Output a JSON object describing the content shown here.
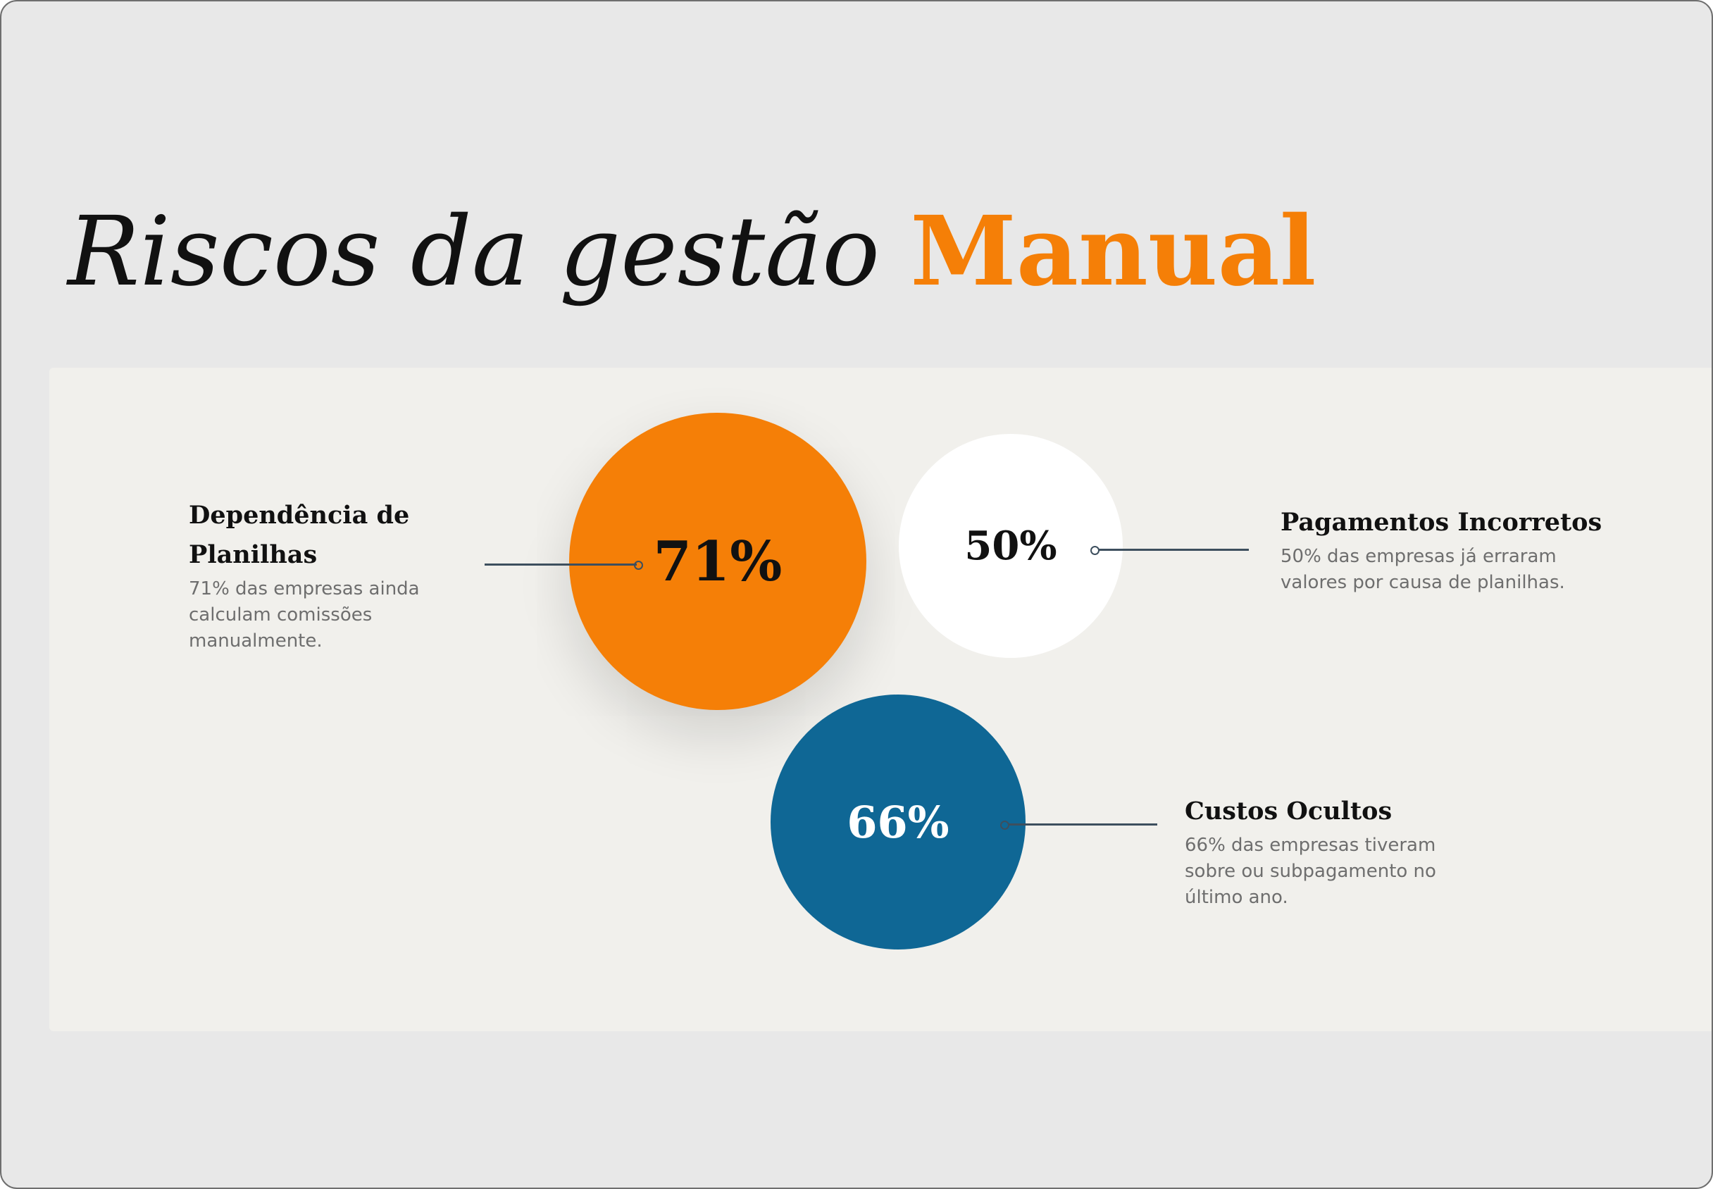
{
  "title": {
    "part1": "Riscos da gestão",
    "part2": "Manual"
  },
  "colors": {
    "accent_orange": "#f57f07",
    "accent_blue": "#0f6795",
    "white": "#ffffff",
    "panel_bg": "#f1f0ec",
    "slide_bg": "#e8e8e8"
  },
  "stats": [
    {
      "value": "71%",
      "title": "Dependência de Planilhas",
      "description": "71% das empresas ainda calculam comissões manualmente.",
      "circle_color": "#f57f07",
      "text_color": "#111111",
      "percent": 71
    },
    {
      "value": "50%",
      "title": "Pagamentos Incorretos",
      "description": "50% das empresas já erraram valores por causa de planilhas.",
      "circle_color": "#ffffff",
      "text_color": "#111111",
      "percent": 50
    },
    {
      "value": "66%",
      "title": "Custos Ocultos",
      "description": "66% das empresas tiveram sobre ou subpagamento no último ano.",
      "circle_color": "#0f6795",
      "text_color": "#ffffff",
      "percent": 66
    }
  ]
}
